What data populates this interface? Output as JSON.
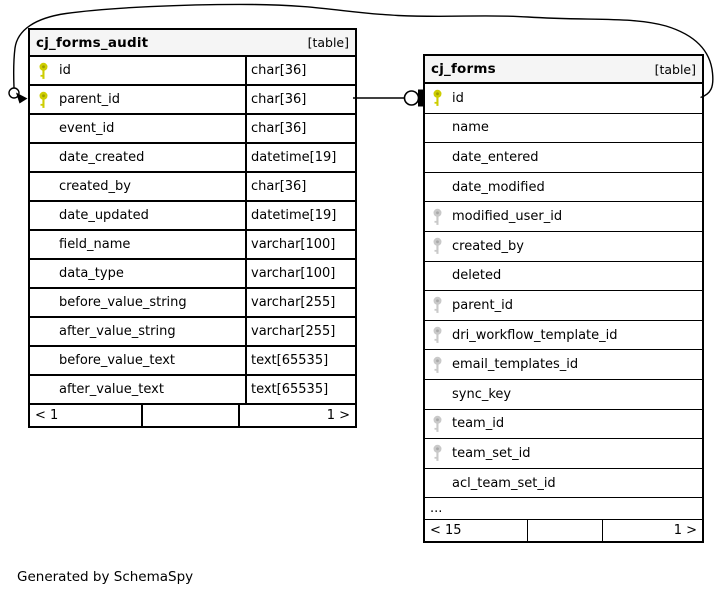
{
  "diagram": {
    "credit": "Generated by SchemaSpy",
    "colors": {
      "border": "#000000",
      "header_bg": "#f5f5f5",
      "primary_key_fill": "#cdcd00",
      "primary_key_hole": "#9d9d00",
      "foreign_key_fill": "#c9c9c9",
      "foreign_key_hole": "#a8a8a8"
    },
    "tables": [
      {
        "name": "cj_forms_audit",
        "badge": "[table]",
        "has_types": true,
        "columns": [
          {
            "name": "id",
            "type": "char[36]",
            "key": "primary"
          },
          {
            "name": "parent_id",
            "type": "char[36]",
            "key": "primary"
          },
          {
            "name": "event_id",
            "type": "char[36]",
            "key": null
          },
          {
            "name": "date_created",
            "type": "datetime[19]",
            "key": null
          },
          {
            "name": "created_by",
            "type": "char[36]",
            "key": null
          },
          {
            "name": "date_updated",
            "type": "datetime[19]",
            "key": null
          },
          {
            "name": "field_name",
            "type": "varchar[100]",
            "key": null
          },
          {
            "name": "data_type",
            "type": "varchar[100]",
            "key": null
          },
          {
            "name": "before_value_string",
            "type": "varchar[255]",
            "key": null
          },
          {
            "name": "after_value_string",
            "type": "varchar[255]",
            "key": null
          },
          {
            "name": "before_value_text",
            "type": "text[65535]",
            "key": null
          },
          {
            "name": "after_value_text",
            "type": "text[65535]",
            "key": null
          }
        ],
        "footer_left": "< 1",
        "footer_right": "1 >"
      },
      {
        "name": "cj_forms",
        "badge": "[table]",
        "has_types": false,
        "columns": [
          {
            "name": "id",
            "key": "primary"
          },
          {
            "name": "name",
            "key": null
          },
          {
            "name": "date_entered",
            "key": null
          },
          {
            "name": "date_modified",
            "key": null
          },
          {
            "name": "modified_user_id",
            "key": "foreign"
          },
          {
            "name": "created_by",
            "key": "foreign"
          },
          {
            "name": "deleted",
            "key": null
          },
          {
            "name": "parent_id",
            "key": "foreign"
          },
          {
            "name": "dri_workflow_template_id",
            "key": "foreign"
          },
          {
            "name": "email_templates_id",
            "key": "foreign"
          },
          {
            "name": "sync_key",
            "key": null
          },
          {
            "name": "team_id",
            "key": "foreign"
          },
          {
            "name": "team_set_id",
            "key": "foreign"
          },
          {
            "name": "acl_team_set_id",
            "key": null
          }
        ],
        "ellipsis": "...",
        "footer_left": "< 15",
        "footer_right": "1 >"
      }
    ]
  }
}
